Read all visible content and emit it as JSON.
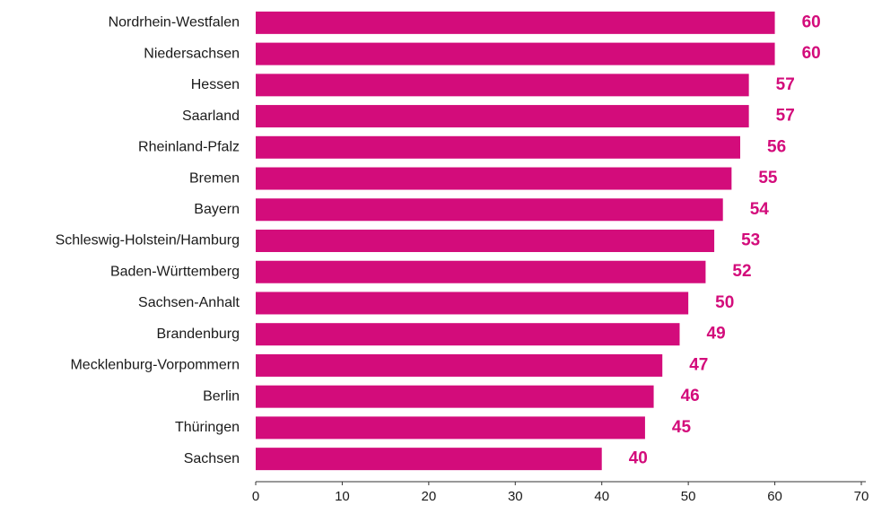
{
  "chart_data": {
    "type": "bar",
    "orientation": "horizontal",
    "categories": [
      "Nordrhein-Westfalen",
      "Niedersachsen",
      "Hessen",
      "Saarland",
      "Rheinland-Pfalz",
      "Bremen",
      "Bayern",
      "Schleswig-Holstein/Hamburg",
      "Baden-Württemberg",
      "Sachsen-Anhalt",
      "Brandenburg",
      "Mecklenburg-Vorpommern",
      "Berlin",
      "Thüringen",
      "Sachsen"
    ],
    "values": [
      60,
      60,
      57,
      57,
      56,
      55,
      54,
      53,
      52,
      50,
      49,
      47,
      46,
      45,
      40
    ],
    "color": "#d30c7b",
    "xlim": [
      0,
      70
    ],
    "xticks": [
      0,
      10,
      20,
      30,
      40,
      50,
      60,
      70
    ],
    "grid": false
  }
}
